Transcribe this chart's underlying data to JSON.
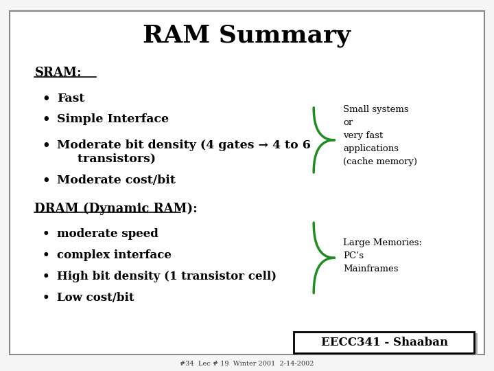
{
  "title": "RAM Summary",
  "title_fontsize": 26,
  "title_fontweight": "bold",
  "background_color": "#f5f5f5",
  "border_color": "#888888",
  "text_color": "#000000",
  "green_color": "#228B22",
  "sram_header": "SRAM:",
  "sram_bullets": [
    "Fast",
    "Simple Interface",
    "Moderate bit density (4 gates → 4 to 6\n     transistors)",
    "Moderate cost/bit"
  ],
  "sram_annotation": "Small systems\nor\nvery fast\napplications\n(cache memory)",
  "dram_header": "DRAM (Dynamic RAM):",
  "dram_bullets": [
    "moderate speed",
    "complex interface",
    "High bit density (1 transistor cell)",
    "Low cost/bit"
  ],
  "dram_annotation": "Large Memories:\nPC’s\nMainframes",
  "footer_box": "EECC341 - Shaaban",
  "footer_small": "#34  Lec # 19  Winter 2001  2-14-2002"
}
